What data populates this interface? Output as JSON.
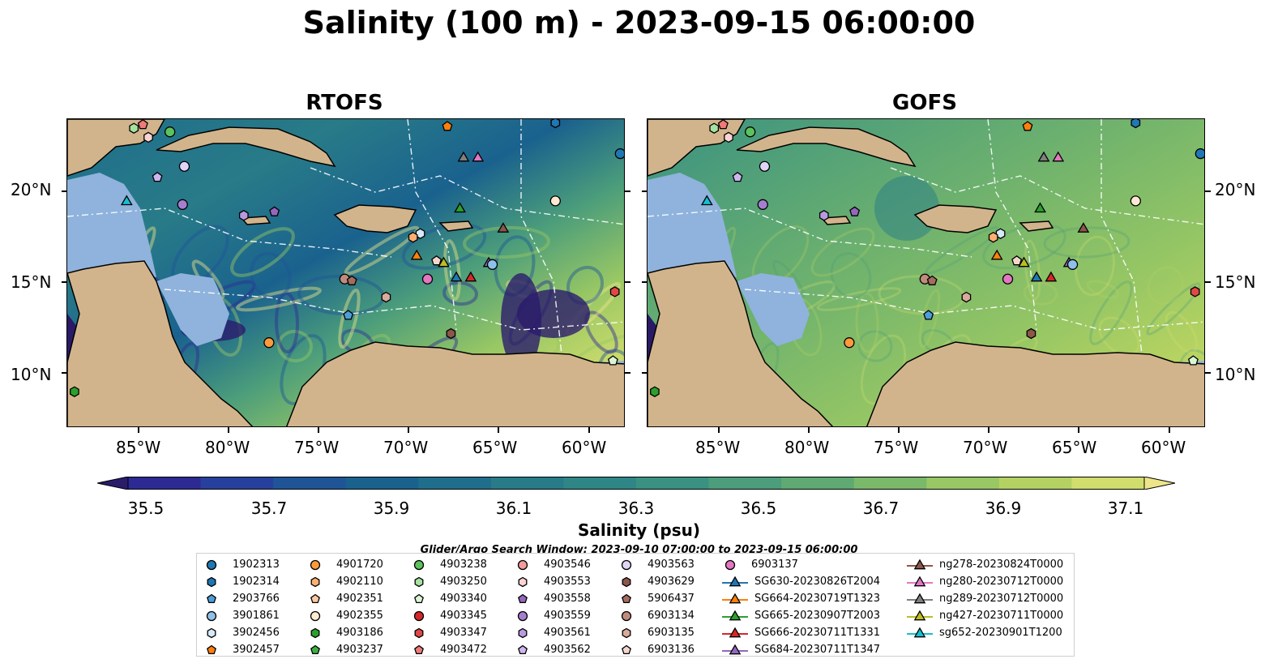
{
  "title": "Salinity (100 m) - 2023-09-15 06:00:00",
  "panels": [
    {
      "name": "RTOFS"
    },
    {
      "name": "GOFS"
    }
  ],
  "axes": {
    "lat_ticks": [
      "20°N",
      "15°N",
      "10°N"
    ],
    "lon_ticks": [
      "85°W",
      "80°W",
      "75°W",
      "70°W",
      "65°W",
      "60°W"
    ]
  },
  "colorbar": {
    "title": "Salinity (psu)",
    "tick_labels": [
      "35.5",
      "35.7",
      "35.9",
      "36.1",
      "36.3",
      "36.5",
      "36.7",
      "36.9",
      "37.1"
    ],
    "min": 35.4,
    "max": 37.2,
    "colors": [
      "#2b1b6b",
      "#2e2a94",
      "#28409d",
      "#1f5496",
      "#1a628e",
      "#1f6e8b",
      "#287b88",
      "#2f8686",
      "#3a9182",
      "#4b9d7b",
      "#5fa973",
      "#7ab86a",
      "#98c764",
      "#b4d262",
      "#d1dd6c",
      "#eee58a"
    ]
  },
  "search_window": "Glider/Argo Search Window: 2023-09-10 07:00:00 to 2023-09-15 06:00:00",
  "legend": [
    {
      "label": "1902313",
      "shape": "circle",
      "color": "#1f77b4"
    },
    {
      "label": "1902314",
      "shape": "hexagon",
      "color": "#1f77b4"
    },
    {
      "label": "2903766",
      "shape": "pentagon",
      "color": "#4c9ed9"
    },
    {
      "label": "3901861",
      "shape": "circle",
      "color": "#8ec1ea"
    },
    {
      "label": "3902456",
      "shape": "hexagon",
      "color": "#d6e9f8"
    },
    {
      "label": "3902457",
      "shape": "pentagon",
      "color": "#ff7f0e"
    },
    {
      "label": "4901720",
      "shape": "circle",
      "color": "#ff9a3c"
    },
    {
      "label": "4902110",
      "shape": "hexagon",
      "color": "#ffb070"
    },
    {
      "label": "4902351",
      "shape": "pentagon",
      "color": "#ffc9a0"
    },
    {
      "label": "4902355",
      "shape": "circle",
      "color": "#ffe9d2"
    },
    {
      "label": "4903186",
      "shape": "hexagon",
      "color": "#2ca02c"
    },
    {
      "label": "4903237",
      "shape": "pentagon",
      "color": "#3cb043"
    },
    {
      "label": "4903238",
      "shape": "circle",
      "color": "#5cc35c"
    },
    {
      "label": "4903250",
      "shape": "hexagon",
      "color": "#a6e3a1"
    },
    {
      "label": "4903340",
      "shape": "pentagon",
      "color": "#daf5d4"
    },
    {
      "label": "4903345",
      "shape": "circle",
      "color": "#d62728"
    },
    {
      "label": "4903347",
      "shape": "hexagon",
      "color": "#e04848"
    },
    {
      "label": "4903472",
      "shape": "pentagon",
      "color": "#ef7a7a"
    },
    {
      "label": "4903546",
      "shape": "circle",
      "color": "#f49b9b"
    },
    {
      "label": "4903553",
      "shape": "hexagon",
      "color": "#fbd3d3"
    },
    {
      "label": "4903558",
      "shape": "pentagon",
      "color": "#9467bd"
    },
    {
      "label": "4903559",
      "shape": "circle",
      "color": "#a57fcf"
    },
    {
      "label": "4903561",
      "shape": "hexagon",
      "color": "#b99ae0"
    },
    {
      "label": "4903562",
      "shape": "pentagon",
      "color": "#cdb6ee"
    },
    {
      "label": "4903563",
      "shape": "circle",
      "color": "#e2d4f7"
    },
    {
      "label": "4903629",
      "shape": "hexagon",
      "color": "#8c564b"
    },
    {
      "label": "5906437",
      "shape": "pentagon",
      "color": "#a46d5f"
    },
    {
      "label": "6903134",
      "shape": "circle",
      "color": "#c08b7d"
    },
    {
      "label": "6903135",
      "shape": "hexagon",
      "color": "#d9aa9c"
    },
    {
      "label": "6903136",
      "shape": "pentagon",
      "color": "#f3d7cd"
    },
    {
      "label": "6903137",
      "shape": "circle",
      "color": "#e377c2"
    },
    {
      "label": "SG630-20230826T2004",
      "shape": "triangle-line",
      "color": "#1f77b4"
    },
    {
      "label": "SG664-20230719T1323",
      "shape": "triangle-line",
      "color": "#ff7f0e"
    },
    {
      "label": "SG665-20230907T2003",
      "shape": "triangle-line",
      "color": "#2ca02c"
    },
    {
      "label": "SG666-20230711T1331",
      "shape": "triangle-line",
      "color": "#d62728"
    },
    {
      "label": "SG684-20230711T1347",
      "shape": "triangle-line",
      "color": "#9467bd"
    },
    {
      "label": "ng278-20230824T0000",
      "shape": "triangle-line",
      "color": "#8c564b"
    },
    {
      "label": "ng280-20230712T0000",
      "shape": "triangle-line",
      "color": "#e377c2"
    },
    {
      "label": "ng289-20230712T0000",
      "shape": "triangle-line",
      "color": "#7f7f7f"
    },
    {
      "label": "ng427-20230711T0000",
      "shape": "triangle-line",
      "color": "#bcbd22"
    },
    {
      "label": "sg652-20230901T1200",
      "shape": "triangle-line",
      "color": "#17becf"
    }
  ],
  "map_extent": {
    "lon": [
      -89,
      -58
    ],
    "lat": [
      7,
      24
    ]
  },
  "markers": [
    {
      "id": "1902313",
      "lon": -58.3,
      "lat": 22.1,
      "shape": "circle",
      "color": "#1f77b4"
    },
    {
      "id": "1902314",
      "lon": -61.9,
      "lat": 23.8,
      "shape": "hexagon",
      "color": "#1f77b4"
    },
    {
      "id": "3902457",
      "lon": -67.9,
      "lat": 23.6,
      "shape": "pentagon",
      "color": "#ff7f0e"
    },
    {
      "id": "4903472",
      "lon": -84.8,
      "lat": 23.7,
      "shape": "pentagon",
      "color": "#ef7a7a"
    },
    {
      "id": "4903250",
      "lon": -85.3,
      "lat": 23.5,
      "shape": "hexagon",
      "color": "#a6e3a1"
    },
    {
      "id": "4903553",
      "lon": -84.5,
      "lat": 23.0,
      "shape": "hexagon",
      "color": "#fbd3d3"
    },
    {
      "id": "4903238",
      "lon": -83.3,
      "lat": 23.3,
      "shape": "circle",
      "color": "#5cc35c"
    },
    {
      "id": "4903563",
      "lon": -82.5,
      "lat": 21.4,
      "shape": "circle",
      "color": "#e2d4f7"
    },
    {
      "id": "4903562",
      "lon": -84.0,
      "lat": 20.8,
      "shape": "pentagon",
      "color": "#cdb6ee"
    },
    {
      "id": "sg652",
      "lon": -85.7,
      "lat": 19.5,
      "shape": "triangle",
      "color": "#17becf"
    },
    {
      "id": "4903559",
      "lon": -82.6,
      "lat": 19.3,
      "shape": "circle",
      "color": "#a57fcf"
    },
    {
      "id": "4903561",
      "lon": -79.2,
      "lat": 18.7,
      "shape": "hexagon",
      "color": "#b99ae0"
    },
    {
      "id": "4903558",
      "lon": -77.5,
      "lat": 18.9,
      "shape": "pentagon",
      "color": "#9467bd"
    },
    {
      "id": "ng278",
      "lon": -64.8,
      "lat": 18.0,
      "shape": "triangle",
      "color": "#8c564b"
    },
    {
      "id": "ng289",
      "lon": -67.0,
      "lat": 21.9,
      "shape": "triangle",
      "color": "#7f7f7f"
    },
    {
      "id": "ng280",
      "lon": -66.2,
      "lat": 21.9,
      "shape": "triangle",
      "color": "#e377c2"
    },
    {
      "id": "SG665",
      "lon": -67.2,
      "lat": 19.1,
      "shape": "triangle",
      "color": "#2ca02c"
    },
    {
      "id": "4902355",
      "lon": -61.9,
      "lat": 19.5,
      "shape": "circle",
      "color": "#ffe9d2"
    },
    {
      "id": "3902456",
      "lon": -69.4,
      "lat": 17.7,
      "shape": "hexagon",
      "color": "#d6e9f8"
    },
    {
      "id": "4902110",
      "lon": -69.8,
      "lat": 17.5,
      "shape": "hexagon",
      "color": "#ffb070"
    },
    {
      "id": "SG664",
      "lon": -69.6,
      "lat": 16.5,
      "shape": "triangle",
      "color": "#ff7f0e"
    },
    {
      "id": "6903136",
      "lon": -68.5,
      "lat": 16.2,
      "shape": "pentagon",
      "color": "#f3d7cd"
    },
    {
      "id": "ng427",
      "lon": -68.1,
      "lat": 16.1,
      "shape": "triangle",
      "color": "#bcbd22"
    },
    {
      "id": "SG684",
      "lon": -65.6,
      "lat": 16.1,
      "shape": "triangle",
      "color": "#9467bd"
    },
    {
      "id": "3901861",
      "lon": -65.4,
      "lat": 16.0,
      "shape": "circle",
      "color": "#8ec1ea"
    },
    {
      "id": "SG630",
      "lon": -67.4,
      "lat": 15.3,
      "shape": "triangle",
      "color": "#1f77b4"
    },
    {
      "id": "SG666",
      "lon": -66.6,
      "lat": 15.3,
      "shape": "triangle",
      "color": "#d62728"
    },
    {
      "id": "6903134",
      "lon": -73.6,
      "lat": 15.2,
      "shape": "circle",
      "color": "#c08b7d"
    },
    {
      "id": "5906437",
      "lon": -73.2,
      "lat": 15.1,
      "shape": "pentagon",
      "color": "#a46d5f"
    },
    {
      "id": "6903137",
      "lon": -69.0,
      "lat": 15.2,
      "shape": "circle",
      "color": "#e377c2"
    },
    {
      "id": "4903347",
      "lon": -58.6,
      "lat": 14.5,
      "shape": "hexagon",
      "color": "#e04848"
    },
    {
      "id": "6903135",
      "lon": -71.3,
      "lat": 14.2,
      "shape": "hexagon",
      "color": "#d9aa9c"
    },
    {
      "id": "2903766",
      "lon": -73.4,
      "lat": 13.2,
      "shape": "pentagon",
      "color": "#4c9ed9"
    },
    {
      "id": "4903629",
      "lon": -67.7,
      "lat": 12.2,
      "shape": "hexagon",
      "color": "#8c564b"
    },
    {
      "id": "4901720",
      "lon": -77.8,
      "lat": 11.7,
      "shape": "circle",
      "color": "#ff9a3c"
    },
    {
      "id": "4903340",
      "lon": -58.7,
      "lat": 10.7,
      "shape": "pentagon",
      "color": "#daf5d4"
    },
    {
      "id": "4903186",
      "lon": -88.6,
      "lat": 9.0,
      "shape": "hexagon",
      "color": "#2ca02c"
    }
  ]
}
